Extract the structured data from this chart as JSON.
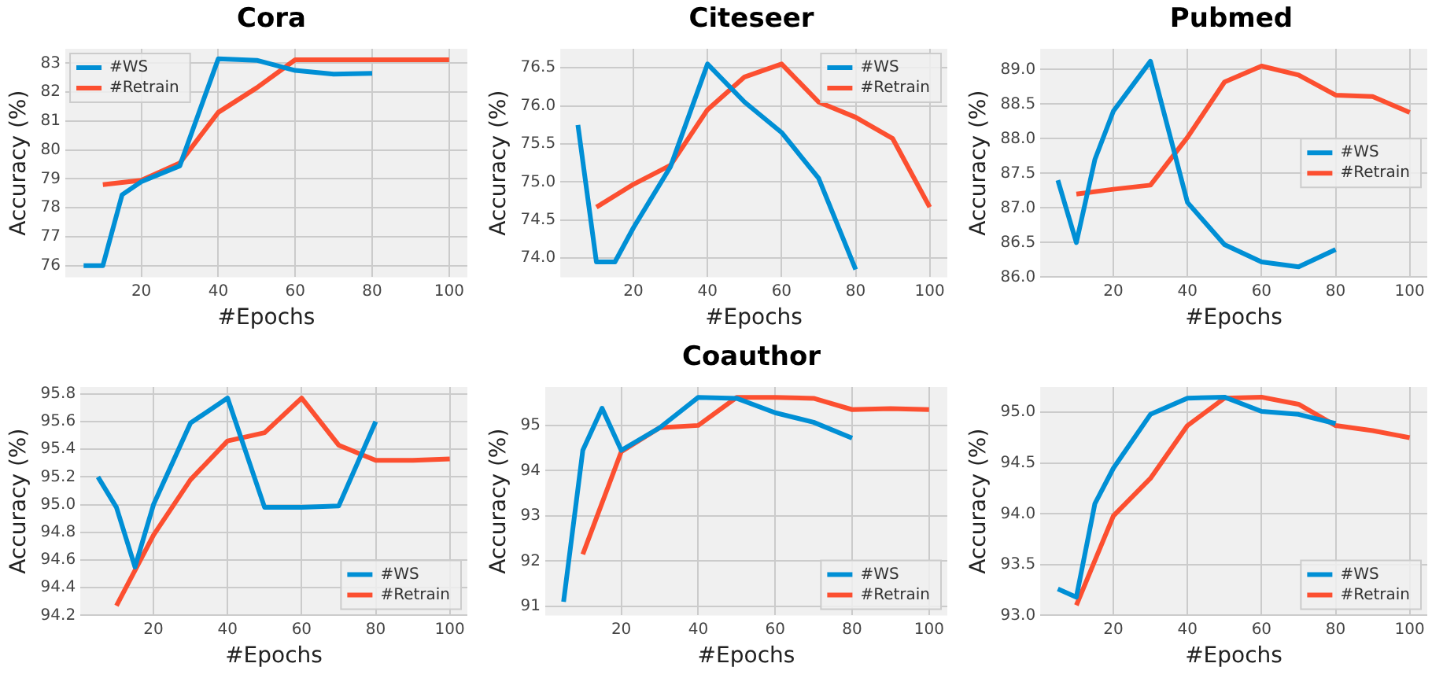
{
  "chart_data": [
    {
      "type": "line",
      "title": "Cora",
      "xlabel": "#Epochs",
      "ylabel": "Accuracy (%)",
      "xlim": [
        0.25,
        104.75
      ],
      "xticks": [
        20,
        40,
        60,
        80,
        100
      ],
      "ylim": [
        75.6,
        83.5
      ],
      "yticks": [
        76,
        77,
        78,
        79,
        80,
        81,
        82,
        83
      ],
      "grid": true,
      "legend": "top left",
      "series": [
        {
          "name": "#WS",
          "color": "#008fd5",
          "x": [
            5,
            10,
            15,
            20,
            30,
            40,
            50,
            60,
            70,
            80
          ],
          "values": [
            76.0,
            76.0,
            78.45,
            78.9,
            79.45,
            83.15,
            83.1,
            82.75,
            82.62,
            82.65
          ]
        },
        {
          "name": "#Retrain",
          "color": "#fc4f30",
          "x": [
            10,
            20,
            30,
            40,
            50,
            60,
            70,
            80,
            90,
            100
          ],
          "values": [
            78.8,
            78.95,
            79.55,
            81.3,
            82.15,
            83.12,
            83.12,
            83.12,
            83.12,
            83.12
          ]
        }
      ]
    },
    {
      "type": "line",
      "title": "Citeseer",
      "xlabel": "#Epochs",
      "ylabel": "Accuracy (%)",
      "xlim": [
        0.25,
        104.75
      ],
      "xticks": [
        20,
        40,
        60,
        80,
        100
      ],
      "ylim": [
        73.75,
        76.75
      ],
      "yticks": [
        {
          "value": 74,
          "label": "74.0"
        },
        74.5,
        {
          "value": 75,
          "label": "75.0"
        },
        75.5,
        {
          "value": 76,
          "label": "76.0"
        },
        76.5
      ],
      "grid": true,
      "legend": "top right",
      "series": [
        {
          "name": "#WS",
          "color": "#008fd5",
          "x": [
            5,
            10,
            15,
            20,
            30,
            40,
            50,
            60,
            70,
            80
          ],
          "values": [
            75.75,
            73.95,
            73.95,
            74.4,
            75.2,
            76.55,
            76.05,
            75.65,
            75.05,
            73.85
          ]
        },
        {
          "name": "#Retrain",
          "color": "#fc4f30",
          "x": [
            10,
            20,
            30,
            40,
            50,
            60,
            70,
            80,
            90,
            100
          ],
          "values": [
            74.67,
            74.97,
            75.22,
            75.95,
            76.38,
            76.55,
            76.05,
            75.85,
            75.57,
            74.67
          ]
        }
      ]
    },
    {
      "type": "line",
      "title": "Pubmed",
      "xlabel": "#Epochs",
      "ylabel": "Accuracy (%)",
      "xlim": [
        0.25,
        104.75
      ],
      "xticks": [
        20,
        40,
        60,
        80,
        100
      ],
      "ylim": [
        86.0,
        89.3
      ],
      "yticks": [
        {
          "value": 86,
          "label": "86.0"
        },
        86.5,
        {
          "value": 87,
          "label": "87.0"
        },
        87.5,
        {
          "value": 88,
          "label": "88.0"
        },
        88.5,
        {
          "value": 89,
          "label": "89.0"
        }
      ],
      "grid": true,
      "legend": "center right",
      "series": [
        {
          "name": "#WS",
          "color": "#008fd5",
          "x": [
            5,
            10,
            15,
            20,
            30,
            40,
            50,
            60,
            70,
            80
          ],
          "values": [
            87.4,
            86.5,
            87.7,
            88.4,
            89.12,
            87.08,
            86.47,
            86.22,
            86.15,
            86.4
          ]
        },
        {
          "name": "#Retrain",
          "color": "#fc4f30",
          "x": [
            10,
            20,
            30,
            40,
            50,
            60,
            70,
            80,
            90,
            100
          ],
          "values": [
            87.2,
            87.27,
            87.33,
            88.02,
            88.82,
            89.05,
            88.92,
            88.63,
            88.61,
            88.38
          ]
        }
      ]
    },
    {
      "type": "line",
      "xlabel": "#Epochs",
      "ylabel": "Accuracy (%)",
      "xlim": [
        0.25,
        104.75
      ],
      "xticks": [
        20,
        40,
        60,
        80,
        100
      ],
      "ylim": [
        94.2,
        95.85
      ],
      "yticks": [
        94.2,
        94.4,
        94.6,
        94.8,
        {
          "value": 95,
          "label": "95.0"
        },
        95.2,
        95.4,
        95.6,
        95.8
      ],
      "grid": true,
      "legend": "bottom right",
      "series": [
        {
          "name": "#WS",
          "color": "#008fd5",
          "x": [
            5,
            10,
            15,
            20,
            30,
            40,
            50,
            60,
            70,
            80
          ],
          "values": [
            95.2,
            94.98,
            94.55,
            95.0,
            95.59,
            95.77,
            94.98,
            94.98,
            94.99,
            95.6
          ]
        },
        {
          "name": "#Retrain",
          "color": "#fc4f30",
          "x": [
            10,
            20,
            30,
            40,
            50,
            60,
            70,
            80,
            90,
            100
          ],
          "values": [
            94.27,
            94.78,
            95.18,
            95.46,
            95.52,
            95.77,
            95.43,
            95.32,
            95.32,
            95.33
          ]
        }
      ]
    },
    {
      "type": "line",
      "title": "Coauthor",
      "xlabel": "#Epochs",
      "ylabel": "Accuracy (%)",
      "xlim": [
        0.25,
        104.75
      ],
      "xticks": [
        20,
        40,
        60,
        80,
        100
      ],
      "ylim": [
        90.8,
        95.85
      ],
      "yticks": [
        91,
        92,
        93,
        94,
        95
      ],
      "grid": true,
      "legend": "bottom right",
      "series": [
        {
          "name": "#WS",
          "color": "#008fd5",
          "x": [
            5,
            10,
            15,
            20,
            30,
            40,
            50,
            60,
            70,
            80
          ],
          "values": [
            91.1,
            94.45,
            95.38,
            94.45,
            94.95,
            95.62,
            95.6,
            95.28,
            95.07,
            94.72
          ]
        },
        {
          "name": "#Retrain",
          "color": "#fc4f30",
          "x": [
            10,
            20,
            30,
            40,
            50,
            60,
            70,
            80,
            90,
            100
          ],
          "values": [
            92.15,
            94.42,
            94.95,
            95.0,
            95.62,
            95.62,
            95.6,
            95.35,
            95.37,
            95.35
          ]
        }
      ]
    },
    {
      "type": "line",
      "xlabel": "#Epochs",
      "ylabel": "Accuracy (%)",
      "xlim": [
        0.25,
        104.75
      ],
      "xticks": [
        20,
        40,
        60,
        80,
        100
      ],
      "ylim": [
        93.0,
        95.25
      ],
      "yticks": [
        {
          "value": 93,
          "label": "93.0"
        },
        93.5,
        {
          "value": 94,
          "label": "94.0"
        },
        94.5,
        {
          "value": 95,
          "label": "95.0"
        }
      ],
      "grid": true,
      "legend": "bottom right",
      "series": [
        {
          "name": "#WS",
          "color": "#008fd5",
          "x": [
            5,
            10,
            15,
            20,
            30,
            40,
            50,
            60,
            70,
            80
          ],
          "values": [
            93.26,
            93.18,
            94.1,
            94.45,
            94.98,
            95.14,
            95.15,
            95.01,
            94.98,
            94.89
          ]
        },
        {
          "name": "#Retrain",
          "color": "#fc4f30",
          "x": [
            10,
            20,
            30,
            40,
            50,
            60,
            70,
            80,
            90,
            100
          ],
          "values": [
            93.1,
            93.98,
            94.35,
            94.87,
            95.14,
            95.15,
            95.08,
            94.87,
            94.82,
            94.75
          ]
        }
      ]
    }
  ]
}
